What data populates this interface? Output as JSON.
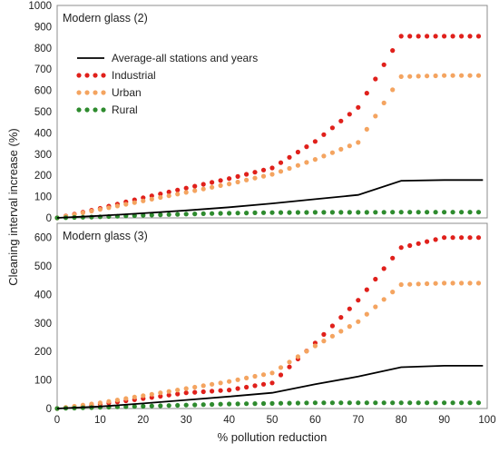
{
  "chart_data": [
    {
      "type": "line",
      "title": "Modern glass (2)",
      "xlabel": "% pollution reduction",
      "ylabel": "Cleaning interval increase (%)",
      "xlim": [
        0,
        100
      ],
      "ylim": [
        0,
        1000
      ],
      "xticks": [
        0,
        10,
        20,
        30,
        40,
        50,
        60,
        70,
        80,
        90,
        100
      ],
      "yticks": [
        0,
        100,
        200,
        300,
        400,
        500,
        600,
        700,
        800,
        900,
        1000
      ],
      "legend": "top-left",
      "series": [
        {
          "name": "Average-all stations and years",
          "style": "line",
          "color": "#000000",
          "x": [
            0,
            10,
            20,
            30,
            40,
            50,
            60,
            70,
            80,
            90,
            99
          ],
          "y": [
            0,
            10,
            22,
            35,
            50,
            68,
            88,
            108,
            175,
            178,
            178
          ]
        },
        {
          "name": "Industrial",
          "style": "dotted",
          "color": "#e0201b",
          "x": [
            0,
            10,
            20,
            30,
            40,
            50,
            60,
            70,
            80,
            90,
            99
          ],
          "y": [
            0,
            45,
            95,
            140,
            185,
            235,
            360,
            520,
            855,
            855,
            855
          ]
        },
        {
          "name": "Urban",
          "style": "dotted",
          "color": "#f4a460",
          "x": [
            0,
            10,
            20,
            30,
            40,
            50,
            60,
            70,
            80,
            90,
            99
          ],
          "y": [
            0,
            40,
            80,
            120,
            160,
            205,
            275,
            355,
            665,
            670,
            670
          ]
        },
        {
          "name": "Rural",
          "style": "dotted",
          "color": "#2e8b2e",
          "x": [
            0,
            10,
            20,
            30,
            40,
            50,
            60,
            70,
            80,
            90,
            99
          ],
          "y": [
            0,
            5,
            12,
            18,
            22,
            25,
            26,
            26,
            27,
            27,
            27
          ]
        }
      ]
    },
    {
      "type": "line",
      "title": "Modern glass (3)",
      "xlabel": "% pollution reduction",
      "ylabel": "Cleaning interval increase (%)",
      "xlim": [
        0,
        100
      ],
      "ylim": [
        0,
        650
      ],
      "xticks": [
        0,
        10,
        20,
        30,
        40,
        50,
        60,
        70,
        80,
        90,
        100
      ],
      "yticks": [
        0,
        100,
        200,
        300,
        400,
        500,
        600
      ],
      "series": [
        {
          "name": "Average-all stations and years",
          "style": "line",
          "color": "#000000",
          "x": [
            0,
            10,
            20,
            30,
            40,
            50,
            60,
            70,
            80,
            90,
            99
          ],
          "y": [
            0,
            7,
            18,
            30,
            42,
            55,
            85,
            112,
            145,
            150,
            150
          ]
        },
        {
          "name": "Industrial",
          "style": "dotted",
          "color": "#e0201b",
          "x": [
            0,
            10,
            20,
            30,
            40,
            50,
            60,
            70,
            80,
            90,
            99
          ],
          "y": [
            0,
            15,
            35,
            55,
            65,
            90,
            230,
            380,
            565,
            600,
            600
          ]
        },
        {
          "name": "Urban",
          "style": "dotted",
          "color": "#f4a460",
          "x": [
            0,
            10,
            20,
            30,
            40,
            50,
            60,
            70,
            80,
            90,
            99
          ],
          "y": [
            0,
            20,
            45,
            70,
            95,
            125,
            220,
            305,
            435,
            440,
            440
          ]
        },
        {
          "name": "Rural",
          "style": "dotted",
          "color": "#2e8b2e",
          "x": [
            0,
            10,
            20,
            30,
            40,
            50,
            60,
            70,
            80,
            90,
            99
          ],
          "y": [
            0,
            4,
            8,
            12,
            16,
            18,
            20,
            20,
            20,
            20,
            20
          ]
        }
      ]
    }
  ]
}
